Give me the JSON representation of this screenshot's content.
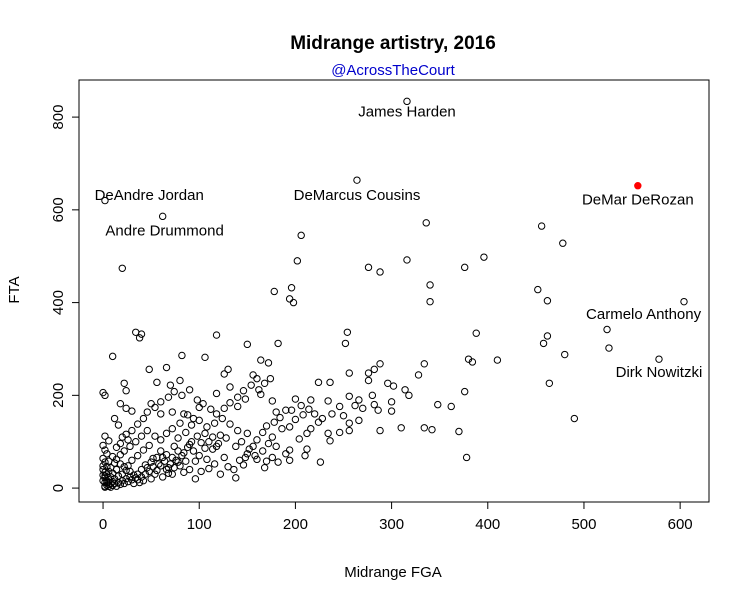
{
  "chart_data": {
    "type": "scatter",
    "title": "Midrange artistry, 2016",
    "subtitle": "@AcrossTheCourt",
    "xlabel": "Midrange FGA",
    "ylabel": "FTA",
    "xlim": [
      -25,
      630
    ],
    "ylim": [
      -30,
      880
    ],
    "xticks": [
      0,
      100,
      200,
      300,
      400,
      500,
      600
    ],
    "yticks": [
      0,
      200,
      400,
      600,
      800
    ],
    "grid": false,
    "highlight_color": "#ff0000",
    "subtitle_color": "#0000cc",
    "annotations": [
      {
        "text": "James Harden",
        "x": 316,
        "y": 812
      },
      {
        "text": "DeAndre Jordan",
        "x": 48,
        "y": 632
      },
      {
        "text": "DeMarcus Cousins",
        "x": 264,
        "y": 632
      },
      {
        "text": "DeMar DeRozan",
        "x": 556,
        "y": 622
      },
      {
        "text": "Andre Drummond",
        "x": 64,
        "y": 555
      },
      {
        "text": "Carmelo Anthony",
        "x": 562,
        "y": 375
      },
      {
        "text": "Dirk Nowitzki",
        "x": 578,
        "y": 250
      }
    ],
    "highlight": [
      {
        "x": 556,
        "y": 652
      }
    ],
    "points": [
      [
        316,
        834
      ],
      [
        264,
        664
      ],
      [
        2,
        620
      ],
      [
        62,
        586
      ],
      [
        336,
        572
      ],
      [
        456,
        565
      ],
      [
        478,
        528
      ],
      [
        206,
        545
      ],
      [
        20,
        474
      ],
      [
        276,
        476
      ],
      [
        316,
        492
      ],
      [
        376,
        476
      ],
      [
        396,
        498
      ],
      [
        196,
        432
      ],
      [
        340,
        438
      ],
      [
        288,
        466
      ],
      [
        202,
        490
      ],
      [
        178,
        424
      ],
      [
        194,
        408
      ],
      [
        198,
        400
      ],
      [
        340,
        402
      ],
      [
        452,
        428
      ],
      [
        462,
        404
      ],
      [
        604,
        402
      ],
      [
        524,
        342
      ],
      [
        526,
        302
      ],
      [
        458,
        312
      ],
      [
        462,
        328
      ],
      [
        480,
        288
      ],
      [
        464,
        226
      ],
      [
        490,
        150
      ],
      [
        578,
        278
      ],
      [
        410,
        276
      ],
      [
        388,
        334
      ],
      [
        380,
        278
      ],
      [
        384,
        272
      ],
      [
        376,
        208
      ],
      [
        314,
        212
      ],
      [
        318,
        200
      ],
      [
        276,
        248
      ],
      [
        282,
        256
      ],
      [
        276,
        232
      ],
      [
        288,
        268
      ],
      [
        254,
        336
      ],
      [
        252,
        312
      ],
      [
        256,
        248
      ],
      [
        280,
        200
      ],
      [
        296,
        226
      ],
      [
        302,
        220
      ],
      [
        300,
        186
      ],
      [
        282,
        180
      ],
      [
        286,
        168
      ],
      [
        300,
        166
      ],
      [
        288,
        124
      ],
      [
        310,
        130
      ],
      [
        334,
        130
      ],
      [
        342,
        126
      ],
      [
        362,
        176
      ],
      [
        370,
        122
      ],
      [
        378,
        66
      ],
      [
        334,
        268
      ],
      [
        328,
        244
      ],
      [
        348,
        180
      ],
      [
        266,
        146
      ],
      [
        256,
        140
      ],
      [
        256,
        124
      ],
      [
        246,
        120
      ],
      [
        234,
        118
      ],
      [
        270,
        172
      ],
      [
        266,
        190
      ],
      [
        256,
        198
      ],
      [
        236,
        228
      ],
      [
        224,
        228
      ],
      [
        234,
        188
      ],
      [
        216,
        190
      ],
      [
        208,
        158
      ],
      [
        200,
        148
      ],
      [
        216,
        128
      ],
      [
        224,
        142
      ],
      [
        212,
        118
      ],
      [
        204,
        106
      ],
      [
        212,
        84
      ],
      [
        210,
        70
      ],
      [
        226,
        56
      ],
      [
        236,
        102
      ],
      [
        22,
        226
      ],
      [
        24,
        210
      ],
      [
        40,
        332
      ],
      [
        38,
        324
      ],
      [
        34,
        336
      ],
      [
        48,
        256
      ],
      [
        56,
        228
      ],
      [
        66,
        260
      ],
      [
        70,
        222
      ],
      [
        80,
        232
      ],
      [
        82,
        286
      ],
      [
        50,
        182
      ],
      [
        60,
        160
      ],
      [
        72,
        164
      ],
      [
        84,
        160
      ],
      [
        94,
        150
      ],
      [
        100,
        174
      ],
      [
        118,
        204
      ],
      [
        130,
        256
      ],
      [
        126,
        246
      ],
      [
        132,
        218
      ],
      [
        118,
        330
      ],
      [
        106,
        282
      ],
      [
        150,
        310
      ],
      [
        164,
        276
      ],
      [
        172,
        270
      ],
      [
        182,
        312
      ],
      [
        156,
        244
      ],
      [
        160,
        236
      ],
      [
        164,
        202
      ],
      [
        148,
        192
      ],
      [
        140,
        176
      ],
      [
        176,
        188
      ],
      [
        180,
        164
      ],
      [
        200,
        192
      ],
      [
        196,
        168
      ],
      [
        186,
        128
      ],
      [
        194,
        132
      ],
      [
        176,
        110
      ],
      [
        180,
        90
      ],
      [
        190,
        74
      ],
      [
        194,
        82
      ],
      [
        170,
        58
      ],
      [
        160,
        62
      ],
      [
        148,
        66
      ],
      [
        146,
        50
      ],
      [
        138,
        22
      ],
      [
        126,
        66
      ],
      [
        128,
        108
      ],
      [
        120,
        96
      ],
      [
        114,
        84
      ],
      [
        106,
        86
      ],
      [
        108,
        62
      ],
      [
        100,
        70
      ],
      [
        96,
        58
      ],
      [
        92,
        100
      ],
      [
        86,
        120
      ],
      [
        78,
        108
      ],
      [
        74,
        90
      ],
      [
        66,
        72
      ],
      [
        60,
        48
      ],
      [
        52,
        64
      ],
      [
        48,
        92
      ],
      [
        42,
        82
      ],
      [
        36,
        70
      ],
      [
        30,
        60
      ],
      [
        26,
        48
      ],
      [
        24,
        38
      ],
      [
        20,
        30
      ],
      [
        16,
        26
      ],
      [
        12,
        20
      ],
      [
        10,
        14
      ],
      [
        8,
        10
      ],
      [
        6,
        8
      ],
      [
        4,
        6
      ],
      [
        2,
        4
      ],
      [
        2,
        2
      ],
      [
        4,
        12
      ],
      [
        6,
        18
      ],
      [
        8,
        24
      ],
      [
        10,
        32
      ],
      [
        14,
        40
      ],
      [
        18,
        52
      ],
      [
        22,
        46
      ],
      [
        28,
        36
      ],
      [
        32,
        28
      ],
      [
        36,
        18
      ],
      [
        40,
        40
      ],
      [
        44,
        30
      ],
      [
        50,
        20
      ],
      [
        56,
        38
      ],
      [
        62,
        24
      ],
      [
        68,
        44
      ],
      [
        72,
        30
      ],
      [
        78,
        56
      ],
      [
        84,
        34
      ],
      [
        90,
        40
      ],
      [
        96,
        20
      ],
      [
        102,
        36
      ],
      [
        110,
        42
      ],
      [
        116,
        52
      ],
      [
        122,
        30
      ],
      [
        130,
        46
      ],
      [
        136,
        40
      ],
      [
        142,
        60
      ],
      [
        150,
        74
      ],
      [
        156,
        90
      ],
      [
        160,
        104
      ],
      [
        166,
        80
      ],
      [
        172,
        96
      ],
      [
        150,
        118
      ],
      [
        140,
        124
      ],
      [
        132,
        138
      ],
      [
        124,
        150
      ],
      [
        116,
        140
      ],
      [
        108,
        132
      ],
      [
        100,
        146
      ],
      [
        92,
        136
      ],
      [
        88,
        158
      ],
      [
        80,
        140
      ],
      [
        72,
        128
      ],
      [
        66,
        118
      ],
      [
        60,
        104
      ],
      [
        54,
        112
      ],
      [
        46,
        124
      ],
      [
        40,
        112
      ],
      [
        34,
        100
      ],
      [
        28,
        90
      ],
      [
        22,
        80
      ],
      [
        18,
        72
      ],
      [
        14,
        62
      ],
      [
        12,
        54
      ],
      [
        8,
        44
      ],
      [
        6,
        36
      ],
      [
        4,
        30
      ],
      [
        2,
        26
      ],
      [
        4,
        46
      ],
      [
        6,
        58
      ],
      [
        10,
        68
      ],
      [
        14,
        88
      ],
      [
        18,
        96
      ],
      [
        24,
        116
      ],
      [
        30,
        124
      ],
      [
        36,
        138
      ],
      [
        42,
        150
      ],
      [
        46,
        164
      ],
      [
        54,
        174
      ],
      [
        60,
        186
      ],
      [
        68,
        196
      ],
      [
        74,
        208
      ],
      [
        82,
        200
      ],
      [
        90,
        212
      ],
      [
        98,
        190
      ],
      [
        104,
        182
      ],
      [
        112,
        170
      ],
      [
        118,
        160
      ],
      [
        126,
        172
      ],
      [
        132,
        184
      ],
      [
        140,
        196
      ],
      [
        146,
        210
      ],
      [
        154,
        222
      ],
      [
        162,
        212
      ],
      [
        168,
        226
      ],
      [
        174,
        236
      ],
      [
        24,
        172
      ],
      [
        30,
        166
      ],
      [
        18,
        182
      ],
      [
        12,
        150
      ],
      [
        16,
        136
      ],
      [
        20,
        110
      ],
      [
        26,
        104
      ],
      [
        2,
        112
      ],
      [
        6,
        102
      ],
      [
        0,
        92
      ],
      [
        2,
        82
      ],
      [
        4,
        74
      ],
      [
        0,
        64
      ],
      [
        2,
        56
      ],
      [
        0,
        48
      ],
      [
        0,
        40
      ],
      [
        2,
        34
      ],
      [
        0,
        28
      ],
      [
        2,
        22
      ],
      [
        0,
        16
      ],
      [
        2,
        12
      ],
      [
        4,
        16
      ],
      [
        6,
        4
      ],
      [
        8,
        2
      ],
      [
        10,
        6
      ],
      [
        12,
        10
      ],
      [
        14,
        4
      ],
      [
        16,
        12
      ],
      [
        18,
        8
      ],
      [
        20,
        16
      ],
      [
        22,
        10
      ],
      [
        24,
        20
      ],
      [
        26,
        14
      ],
      [
        28,
        24
      ],
      [
        30,
        18
      ],
      [
        32,
        10
      ],
      [
        34,
        22
      ],
      [
        36,
        30
      ],
      [
        38,
        12
      ],
      [
        40,
        24
      ],
      [
        42,
        16
      ],
      [
        44,
        50
      ],
      [
        46,
        44
      ],
      [
        48,
        36
      ],
      [
        50,
        56
      ],
      [
        52,
        46
      ],
      [
        54,
        30
      ],
      [
        56,
        66
      ],
      [
        58,
        52
      ],
      [
        60,
        80
      ],
      [
        62,
        66
      ],
      [
        64,
        58
      ],
      [
        66,
        40
      ],
      [
        68,
        32
      ],
      [
        70,
        52
      ],
      [
        72,
        66
      ],
      [
        74,
        44
      ],
      [
        76,
        60
      ],
      [
        78,
        80
      ],
      [
        80,
        48
      ],
      [
        82,
        70
      ],
      [
        84,
        76
      ],
      [
        86,
        58
      ],
      [
        88,
        88
      ],
      [
        90,
        94
      ],
      [
        94,
        80
      ],
      [
        98,
        112
      ],
      [
        102,
        98
      ],
      [
        106,
        118
      ],
      [
        110,
        100
      ],
      [
        114,
        110
      ],
      [
        118,
        90
      ],
      [
        122,
        114
      ],
      [
        0,
        206
      ],
      [
        2,
        200
      ],
      [
        10,
        284
      ],
      [
        194,
        60
      ],
      [
        182,
        56
      ],
      [
        176,
        66
      ],
      [
        168,
        44
      ],
      [
        138,
        90
      ],
      [
        144,
        100
      ],
      [
        152,
        84
      ],
      [
        158,
        70
      ],
      [
        166,
        120
      ],
      [
        170,
        134
      ],
      [
        178,
        142
      ],
      [
        184,
        152
      ],
      [
        190,
        168
      ],
      [
        206,
        178
      ],
      [
        214,
        170
      ],
      [
        220,
        160
      ],
      [
        228,
        150
      ],
      [
        238,
        160
      ],
      [
        246,
        176
      ],
      [
        250,
        156
      ],
      [
        262,
        178
      ]
    ]
  }
}
